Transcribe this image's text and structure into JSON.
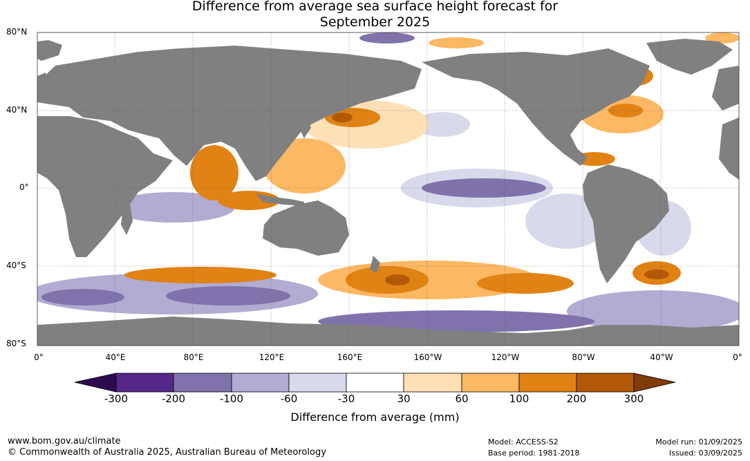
{
  "title_line1": "Difference from average sea surface height forecast for",
  "title_line2": "September 2025",
  "lat_labels": [
    "80°N",
    "40°N",
    "0°",
    "40°S",
    "80°S"
  ],
  "lon_labels": [
    "0°",
    "40°E",
    "80°E",
    "120°E",
    "160°E",
    "160°W",
    "120°W",
    "80°W",
    "40°W",
    "0°"
  ],
  "colorbar": {
    "ticks": [
      "-300",
      "-200",
      "-100",
      "-60",
      "-30",
      "30",
      "60",
      "100",
      "200",
      "300"
    ],
    "colors": [
      "#2d0a4e",
      "#542788",
      "#8073ac",
      "#b2abd2",
      "#d8daeb",
      "#ffffff",
      "#fee0b6",
      "#fdb863",
      "#e08214",
      "#b35806",
      "#7f3b08"
    ],
    "units_label": "Difference from average (mm)"
  },
  "map_colors": {
    "land": "#808080",
    "ocean_neutral": "#ffffff"
  },
  "footer": {
    "url": "www.bom.gov.au/climate",
    "copyright": "© Commonwealth of Australia 2025, Australian Bureau of Meteorology",
    "model": "Model: ACCESS-S2",
    "base_period": "Base period: 1981-2018",
    "model_run": "Model run: 01/09/2025",
    "issued": "Issued: 03/09/2025"
  }
}
